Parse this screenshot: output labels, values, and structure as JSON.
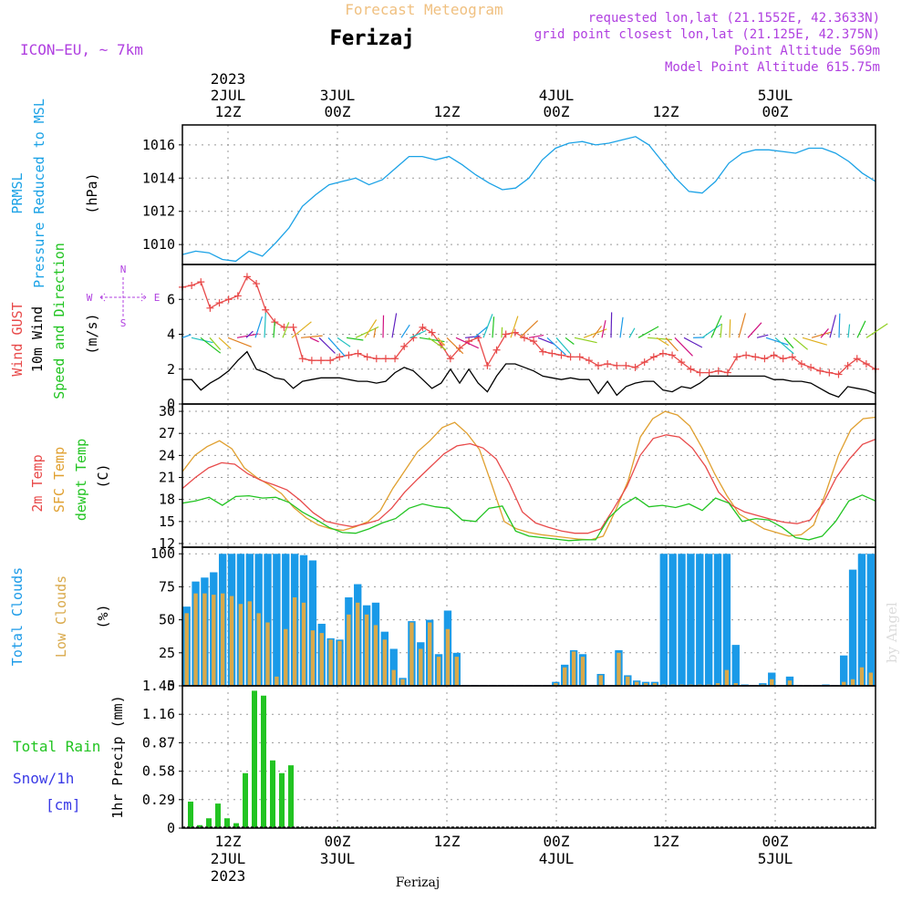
{
  "header": {
    "title": "Forecast Meteogram",
    "station": "Ferizaj",
    "model": "ICON−EU, ~ 7km",
    "requested": "requested lon,lat (21.1552E, 42.3633N)",
    "grid_point": "grid point closest lon,lat (21.125E, 42.375N)",
    "point_alt": "Point Altitude 569m",
    "model_alt": "Model Point Altitude 615.75m",
    "watermark": "by Angel",
    "footer": "Ferizaj"
  },
  "colors": {
    "pressure": "#1ba2e6",
    "gust": "#e84a4a",
    "wind": "#000000",
    "temp": "#e84a4a",
    "sfc_temp": "#e0a030",
    "dewpt": "#22c422",
    "total_clouds": "#1a9ae8",
    "low_clouds": "#d9a94a",
    "rain": "#22c422",
    "snow": "#3a3ae6",
    "label_purple": "#b040e0",
    "title_orange": "#f0c080"
  },
  "time_axis": {
    "top_labels": [
      {
        "t": 12,
        "lines": [
          "2023",
          "2JUL",
          "12Z"
        ]
      },
      {
        "t": 24,
        "lines": [
          "3JUL",
          "00Z"
        ]
      },
      {
        "t": 36,
        "lines": [
          "12Z"
        ]
      },
      {
        "t": 48,
        "lines": [
          "4JUL",
          "00Z"
        ]
      },
      {
        "t": 60,
        "lines": [
          "12Z"
        ]
      },
      {
        "t": 72,
        "lines": [
          "5JUL",
          "00Z"
        ]
      }
    ],
    "bottom_labels": [
      {
        "t": 12,
        "lines": [
          "12Z",
          "2JUL",
          "2023"
        ]
      },
      {
        "t": 24,
        "lines": [
          "00Z",
          "3JUL"
        ]
      },
      {
        "t": 36,
        "lines": [
          "12Z"
        ]
      },
      {
        "t": 48,
        "lines": [
          "00Z",
          "4JUL"
        ]
      },
      {
        "t": 60,
        "lines": [
          "12Z"
        ]
      },
      {
        "t": 72,
        "lines": [
          "00Z",
          "5JUL"
        ]
      }
    ]
  },
  "chart_data": [
    {
      "type": "line",
      "panel": "pressure",
      "ylabel_lines": [
        [
          "PRMSL"
        ],
        [
          "Pressure Reduced to MSL"
        ],
        [
          "(hPa)"
        ]
      ],
      "ylim": [
        1008.8,
        1017.2
      ],
      "yticks": [
        1010,
        1012,
        1014,
        1016
      ],
      "series": [
        {
          "values": [
            1009.4,
            1009.6,
            1009.5,
            1009.1,
            1009.0,
            1009.6,
            1009.3,
            1010.1,
            1011.0,
            1012.3,
            1013.0,
            1013.6,
            1013.8,
            1014.0,
            1013.6,
            1013.9,
            1014.6,
            1015.3,
            1015.3,
            1015.1,
            1015.3,
            1014.8,
            1014.2,
            1013.7,
            1013.3,
            1013.4,
            1014.0,
            1015.1,
            1015.8,
            1016.1,
            1016.2,
            1016.0,
            1016.1,
            1016.3,
            1016.5,
            1016.0,
            1015.0,
            1014.0,
            1013.2,
            1013.1,
            1013.8,
            1014.9,
            1015.5,
            1015.7,
            1015.7,
            1015.6,
            1015.5,
            1015.8,
            1015.8,
            1015.5,
            1015.0,
            1014.3,
            1013.8
          ]
        }
      ]
    },
    {
      "type": "line",
      "panel": "wind",
      "ylabel_lines": [
        [
          "Wind GUST"
        ],
        [
          "10m Wind"
        ],
        [
          "Speed and Direction"
        ],
        [
          "(m/s)"
        ]
      ],
      "ylim": [
        0,
        8
      ],
      "yticks": [
        0,
        2,
        4,
        6
      ],
      "compass": [
        "N",
        "W",
        "E",
        "S"
      ],
      "series": [
        {
          "name": "Wind GUST",
          "values": [
            6.7,
            6.8,
            7.0,
            5.5,
            5.8,
            6.0,
            6.2,
            7.3,
            6.9,
            5.4,
            4.7,
            4.4,
            4.4,
            2.6,
            2.5,
            2.5,
            2.5,
            2.7,
            2.8,
            2.9,
            2.7,
            2.6,
            2.6,
            2.6,
            3.3,
            3.8,
            4.4,
            4.1,
            3.4,
            2.6,
            3.2,
            3.6,
            3.8,
            2.2,
            3.1,
            4.0,
            4.1,
            3.8,
            3.6,
            3.0,
            2.9,
            2.8,
            2.7,
            2.7,
            2.5,
            2.2,
            2.3,
            2.2,
            2.2,
            2.1,
            2.4,
            2.7,
            2.9,
            2.8,
            2.4,
            2.0,
            1.8,
            1.8,
            1.9,
            1.8,
            2.7,
            2.8,
            2.7,
            2.6,
            2.8,
            2.6,
            2.7,
            2.3,
            2.1,
            1.9,
            1.8,
            1.7,
            2.2,
            2.6,
            2.3,
            2.0
          ]
        },
        {
          "name": "10m Wind",
          "values": [
            1.4,
            1.4,
            0.8,
            1.2,
            1.5,
            1.9,
            2.5,
            3.0,
            2.0,
            1.8,
            1.5,
            1.4,
            0.9,
            1.3,
            1.4,
            1.5,
            1.5,
            1.5,
            1.4,
            1.3,
            1.3,
            1.2,
            1.3,
            1.8,
            2.1,
            1.9,
            1.4,
            0.9,
            1.2,
            2.0,
            1.2,
            2.0,
            1.2,
            0.7,
            1.6,
            2.3,
            2.3,
            2.1,
            1.9,
            1.6,
            1.5,
            1.4,
            1.5,
            1.4,
            1.4,
            0.6,
            1.3,
            0.5,
            1.0,
            1.2,
            1.3,
            1.3,
            0.8,
            0.7,
            1.0,
            0.9,
            1.2,
            1.6,
            1.6,
            1.6,
            1.6,
            1.6,
            1.6,
            1.6,
            1.4,
            1.4,
            1.3,
            1.3,
            1.2,
            0.9,
            0.6,
            0.4,
            1.0,
            0.9,
            0.8,
            0.6
          ]
        }
      ]
    },
    {
      "type": "line",
      "panel": "temperature",
      "ylabel_lines": [
        [
          "2m Temp"
        ],
        [
          "SFC Temp"
        ],
        [
          "dewpt Temp"
        ],
        [
          "(C)"
        ]
      ],
      "ylim": [
        11.5,
        31
      ],
      "yticks": [
        12,
        15,
        18,
        21,
        24,
        27,
        30
      ],
      "series": [
        {
          "name": "SFC Temp",
          "values": [
            21.8,
            24.0,
            25.2,
            26.0,
            24.9,
            22.3,
            21.0,
            20.0,
            18.8,
            16.9,
            15.5,
            14.5,
            14.0,
            13.8,
            14.3,
            15.0,
            16.5,
            19.5,
            22.0,
            24.5,
            26.0,
            27.8,
            28.5,
            27.0,
            24.8,
            20.0,
            15.0,
            14.0,
            13.5,
            13.2,
            13.0,
            12.8,
            12.6,
            12.5,
            13.0,
            16.5,
            20.5,
            26.5,
            29.0,
            30.0,
            29.5,
            28.0,
            25.0,
            21.5,
            18.5,
            16.0,
            15.0,
            14.0,
            13.5,
            13.0,
            13.2,
            14.5,
            19.0,
            24.0,
            27.5,
            29.0,
            29.2
          ]
        },
        {
          "name": "2m Temp",
          "values": [
            19.5,
            21.0,
            22.3,
            23.0,
            22.8,
            21.5,
            20.6,
            20.0,
            19.3,
            17.9,
            16.2,
            15.0,
            14.6,
            14.3,
            14.7,
            15.2,
            16.8,
            19.0,
            20.8,
            22.5,
            24.2,
            25.3,
            25.6,
            25.0,
            23.5,
            20.2,
            16.3,
            14.8,
            14.2,
            13.7,
            13.4,
            13.4,
            14.0,
            16.8,
            19.8,
            24.0,
            26.3,
            26.8,
            26.5,
            25.0,
            22.5,
            19.0,
            17.2,
            16.3,
            15.8,
            15.3,
            14.9,
            14.7,
            15.2,
            17.5,
            21.0,
            23.5,
            25.5,
            26.2
          ]
        },
        {
          "name": "dewpt Temp",
          "values": [
            17.5,
            17.8,
            18.3,
            17.2,
            18.4,
            18.5,
            18.2,
            18.3,
            17.6,
            16.3,
            15.3,
            14.2,
            13.5,
            13.4,
            14.0,
            14.8,
            15.4,
            16.8,
            17.4,
            17.0,
            16.8,
            15.2,
            15.0,
            16.8,
            17.1,
            13.7,
            13.0,
            12.8,
            12.6,
            12.4,
            12.5,
            12.5,
            15.5,
            17.2,
            18.3,
            17.0,
            17.2,
            16.9,
            17.4,
            16.5,
            18.2,
            17.5,
            15.0,
            15.4,
            15.2,
            14.2,
            12.8,
            12.5,
            13.0,
            15.0,
            17.8,
            18.6,
            17.8
          ]
        }
      ]
    },
    {
      "type": "bar",
      "panel": "clouds",
      "ylabel_lines": [
        [
          "Total Clouds"
        ],
        [
          "Low Clouds"
        ],
        [
          "(%)"
        ]
      ],
      "ylim": [
        0,
        105
      ],
      "yticks": [
        0,
        25,
        50,
        75,
        100
      ],
      "series": [
        {
          "name": "Total Clouds",
          "values": [
            60,
            79,
            82,
            86,
            100,
            100,
            100,
            100,
            100,
            100,
            100,
            100,
            100,
            99,
            95,
            47,
            36,
            35,
            67,
            77,
            61,
            63,
            41,
            28,
            6,
            49,
            33,
            50,
            24,
            57,
            25,
            0,
            0,
            0,
            0,
            0,
            0,
            0,
            0,
            0,
            0,
            3,
            16,
            27,
            24,
            0,
            9,
            0,
            27,
            8,
            4,
            3,
            3,
            100,
            100,
            100,
            100,
            100,
            100,
            100,
            100,
            31,
            1,
            0,
            2,
            10,
            0,
            7,
            0,
            0,
            0,
            1,
            0,
            23,
            88,
            100,
            100
          ]
        },
        {
          "name": "Low Clouds",
          "values": [
            55,
            70,
            70,
            69,
            70,
            68,
            62,
            64,
            55,
            48,
            7,
            43,
            67,
            63,
            42,
            40,
            35,
            34,
            54,
            63,
            54,
            46,
            35,
            12,
            5,
            48,
            28,
            48,
            22,
            43,
            22,
            0,
            0,
            0,
            0,
            0,
            0,
            0,
            0,
            0,
            0,
            2,
            14,
            26,
            22,
            0,
            8,
            0,
            25,
            7,
            3,
            2,
            2,
            1,
            1,
            1,
            1,
            1,
            1,
            2,
            12,
            2,
            0,
            0,
            1,
            5,
            0,
            4,
            0,
            0,
            0,
            0,
            0,
            3,
            5,
            14,
            10
          ]
        }
      ]
    },
    {
      "type": "bar",
      "panel": "precip",
      "ylabel_lines": [
        [
          "Total Rain"
        ],
        [
          "Snow/1h"
        ],
        [
          "[cm]"
        ],
        [
          "1hr Precip (mm)"
        ]
      ],
      "ylim": [
        0,
        1.45
      ],
      "yticks": [
        0,
        0.29,
        0.58,
        0.87,
        1.16,
        1.45
      ],
      "series": [
        {
          "name": "Total Rain",
          "values": [
            0.27,
            0.03,
            0.1,
            0.25,
            0.1,
            0.05,
            0.56,
            1.4,
            1.35,
            0.69,
            0.56,
            0.64,
            0.01,
            0.0,
            0.0,
            0.0,
            0.01,
            0.0
          ]
        }
      ]
    }
  ]
}
